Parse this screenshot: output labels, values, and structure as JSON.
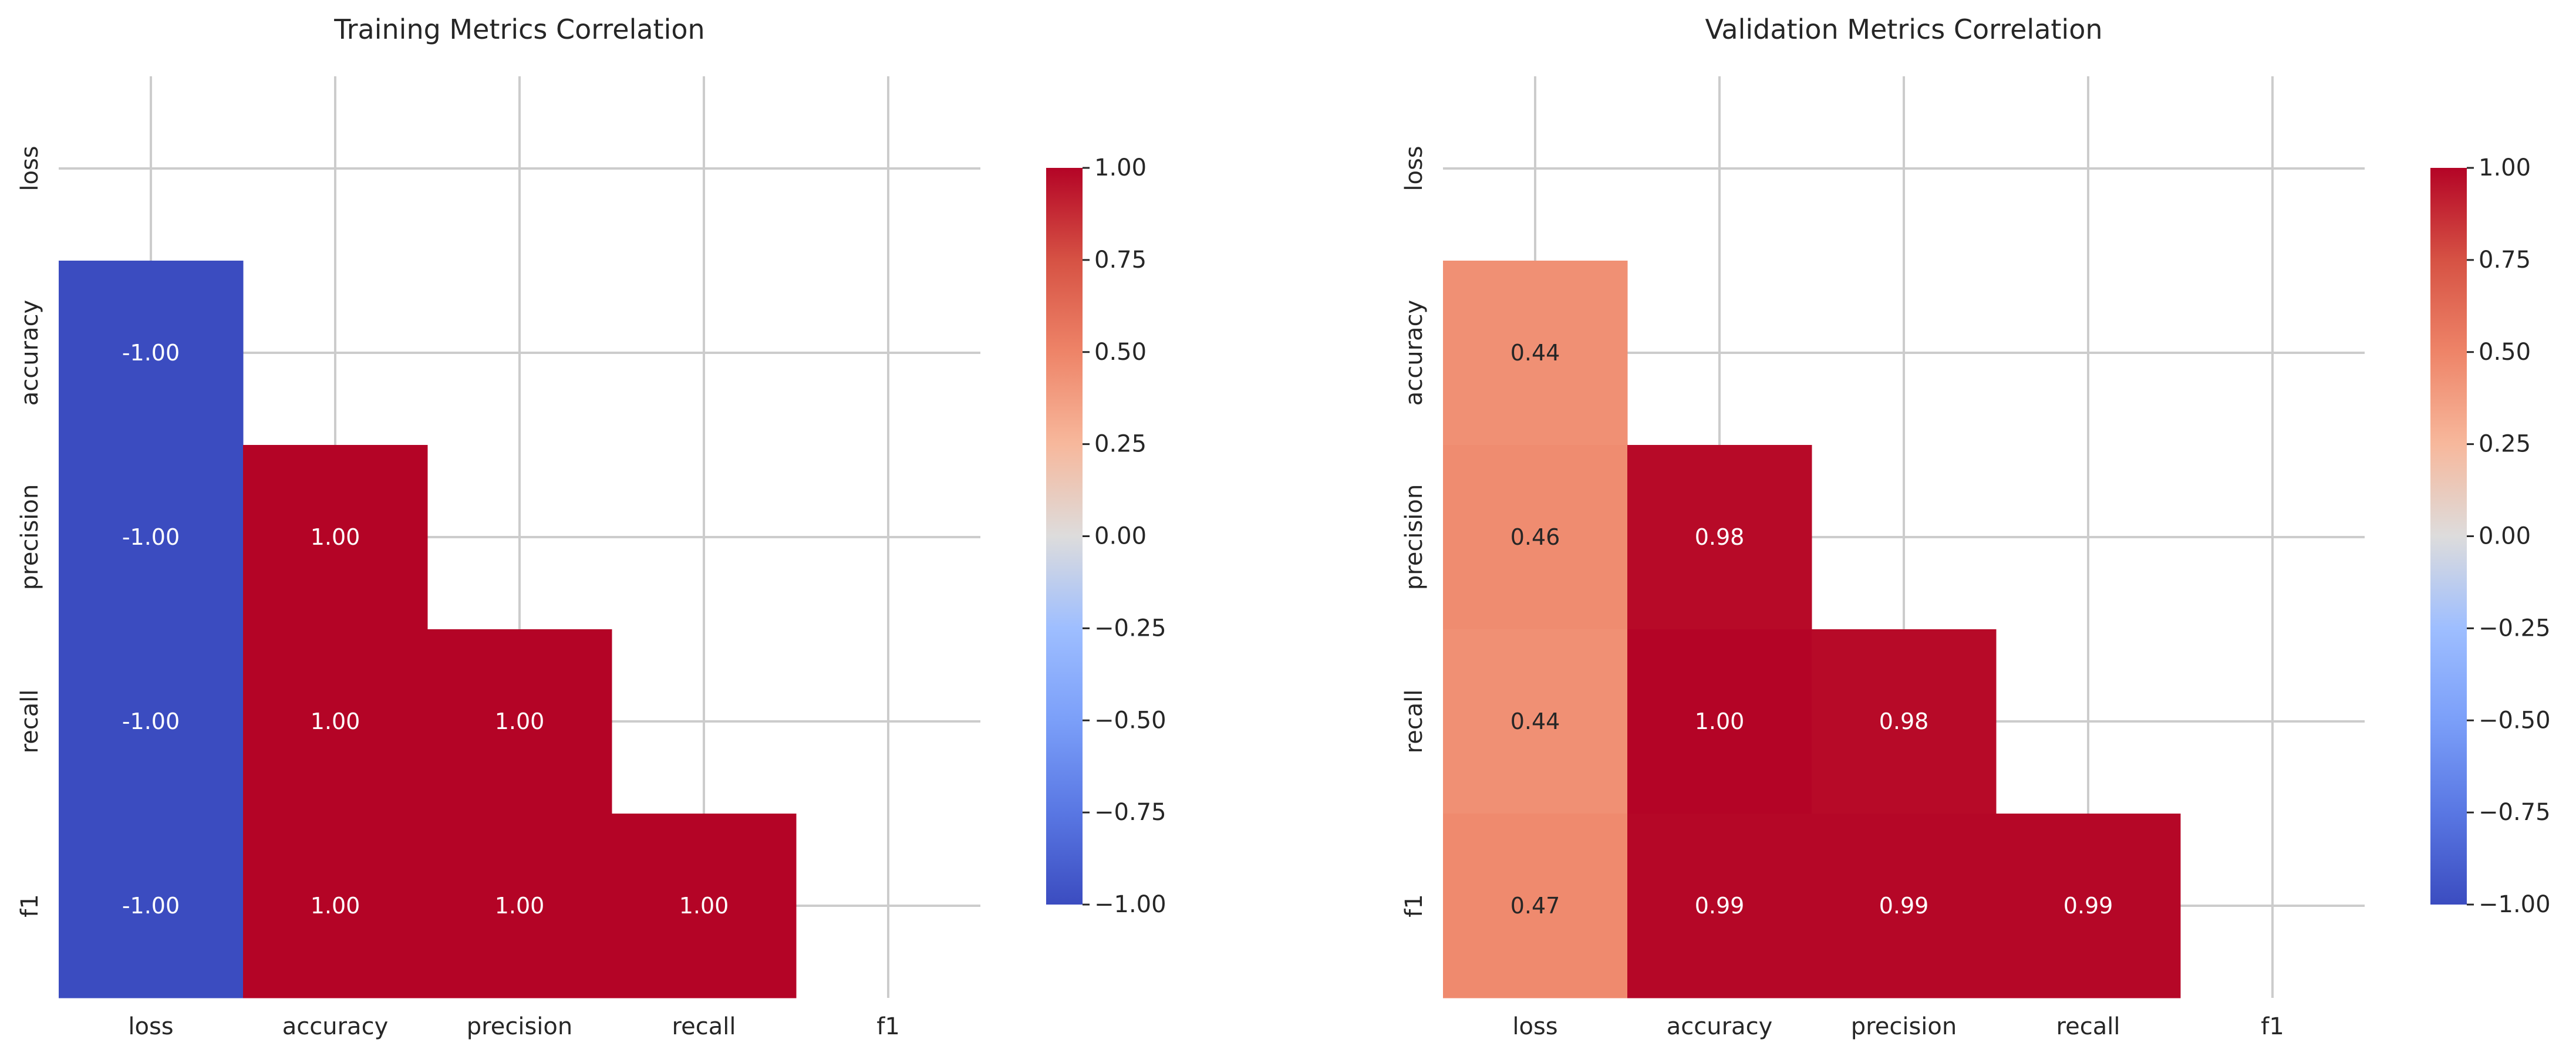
{
  "chart_data": [
    {
      "type": "heatmap",
      "title": "Training Metrics Correlation",
      "x_labels": [
        "loss",
        "accuracy",
        "precision",
        "recall",
        "f1"
      ],
      "y_labels": [
        "loss",
        "accuracy",
        "precision",
        "recall",
        "f1"
      ],
      "mask": "upper triangle including diagonal",
      "values": [
        [
          null,
          null,
          null,
          null,
          null
        ],
        [
          -1.0,
          null,
          null,
          null,
          null
        ],
        [
          -1.0,
          1.0,
          null,
          null,
          null
        ],
        [
          -1.0,
          1.0,
          1.0,
          null,
          null
        ],
        [
          -1.0,
          1.0,
          1.0,
          1.0,
          null
        ]
      ],
      "value_format": "2 decimals",
      "colormap": "coolwarm",
      "vmin": -1.0,
      "vmax": 1.0,
      "colorbar_ticks": [
        "1.00",
        "0.75",
        "0.50",
        "0.25",
        "0.00",
        "−0.25",
        "−0.50",
        "−0.75",
        "−1.00"
      ],
      "grid": true
    },
    {
      "type": "heatmap",
      "title": "Validation Metrics Correlation",
      "x_labels": [
        "loss",
        "accuracy",
        "precision",
        "recall",
        "f1"
      ],
      "y_labels": [
        "loss",
        "accuracy",
        "precision",
        "recall",
        "f1"
      ],
      "mask": "upper triangle including diagonal",
      "values": [
        [
          null,
          null,
          null,
          null,
          null
        ],
        [
          0.44,
          null,
          null,
          null,
          null
        ],
        [
          0.46,
          0.98,
          null,
          null,
          null
        ],
        [
          0.44,
          1.0,
          0.98,
          null,
          null
        ],
        [
          0.47,
          0.99,
          0.99,
          0.99,
          null
        ]
      ],
      "value_format": "2 decimals",
      "colormap": "coolwarm",
      "vmin": -1.0,
      "vmax": 1.0,
      "colorbar_ticks": [
        "1.00",
        "0.75",
        "0.50",
        "0.25",
        "0.00",
        "−0.25",
        "−0.50",
        "−0.75",
        "−1.00"
      ],
      "grid": true
    }
  ]
}
